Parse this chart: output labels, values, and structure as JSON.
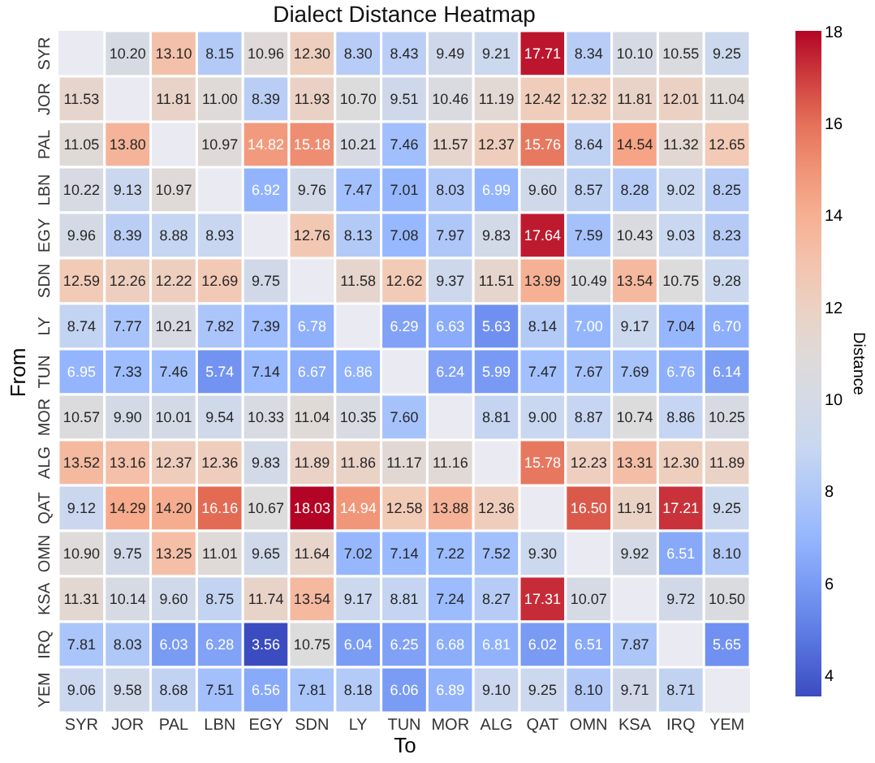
{
  "chart_data": {
    "type": "heatmap",
    "title": "Dialect Distance Heatmap",
    "xlabel": "To",
    "ylabel": "From",
    "clabel": "Distance",
    "categories": [
      "SYR",
      "JOR",
      "PAL",
      "LBN",
      "EGY",
      "SDN",
      "LY",
      "TUN",
      "MOR",
      "ALG",
      "QAT",
      "OMN",
      "KSA",
      "IRQ",
      "YEM"
    ],
    "y_categories": [
      "SYR",
      "JOR",
      "PAL",
      "LBN",
      "EGY",
      "SDN",
      "LY",
      "TUN",
      "MOR",
      "ALG",
      "QAT",
      "OMN",
      "KSA",
      "IRQ",
      "YEM"
    ],
    "cells": [
      [
        null,
        10.2,
        13.1,
        8.15,
        10.96,
        12.3,
        8.3,
        8.43,
        9.49,
        9.21,
        17.71,
        8.34,
        10.1,
        10.55,
        9.25
      ],
      [
        11.53,
        null,
        11.81,
        11.0,
        8.39,
        11.93,
        10.7,
        9.51,
        10.46,
        11.19,
        12.42,
        12.32,
        11.81,
        12.01,
        11.04
      ],
      [
        11.05,
        13.8,
        null,
        10.97,
        14.82,
        15.18,
        10.21,
        7.46,
        11.57,
        12.37,
        15.76,
        8.64,
        14.54,
        11.32,
        12.65
      ],
      [
        10.22,
        9.13,
        10.97,
        null,
        6.92,
        9.76,
        7.47,
        7.01,
        8.03,
        6.99,
        9.6,
        8.57,
        8.28,
        9.02,
        8.25
      ],
      [
        9.96,
        8.39,
        8.88,
        8.93,
        null,
        12.76,
        8.13,
        7.08,
        7.97,
        9.83,
        17.64,
        7.59,
        10.43,
        9.03,
        8.23
      ],
      [
        12.59,
        12.26,
        12.22,
        12.69,
        9.75,
        null,
        11.58,
        12.62,
        9.37,
        11.51,
        13.99,
        10.49,
        13.54,
        10.75,
        9.28
      ],
      [
        8.74,
        7.77,
        10.21,
        7.82,
        7.39,
        6.78,
        null,
        6.29,
        6.63,
        5.63,
        8.14,
        7.0,
        9.17,
        7.04,
        6.7
      ],
      [
        6.95,
        7.33,
        7.46,
        5.74,
        7.14,
        6.67,
        6.86,
        null,
        6.24,
        5.99,
        7.47,
        7.67,
        7.69,
        6.76,
        6.14
      ],
      [
        10.57,
        9.9,
        10.01,
        9.54,
        10.33,
        11.04,
        10.35,
        7.6,
        null,
        8.81,
        9.0,
        8.87,
        10.74,
        8.86,
        10.25
      ],
      [
        13.52,
        13.16,
        12.37,
        12.36,
        9.83,
        11.89,
        11.86,
        11.17,
        11.16,
        null,
        15.78,
        12.23,
        13.31,
        12.3,
        11.89
      ],
      [
        9.12,
        14.29,
        14.2,
        16.16,
        10.67,
        18.03,
        14.94,
        12.58,
        13.88,
        12.36,
        null,
        16.5,
        11.91,
        17.21,
        9.25
      ],
      [
        10.9,
        9.75,
        13.25,
        11.01,
        9.65,
        11.64,
        7.02,
        7.14,
        7.22,
        7.52,
        9.3,
        null,
        9.92,
        6.51,
        8.1
      ],
      [
        11.31,
        10.14,
        9.6,
        8.75,
        11.74,
        13.54,
        9.17,
        8.81,
        7.24,
        8.27,
        17.31,
        10.07,
        null,
        9.72,
        10.5
      ],
      [
        7.81,
        8.03,
        6.03,
        6.28,
        3.56,
        10.75,
        6.04,
        6.25,
        6.68,
        6.81,
        6.02,
        6.51,
        7.87,
        null,
        5.65
      ],
      [
        9.06,
        9.58,
        8.68,
        7.51,
        6.56,
        7.81,
        8.18,
        6.06,
        6.89,
        9.1,
        9.25,
        8.1,
        9.71,
        8.71,
        null
      ]
    ],
    "cell_labels": [
      [
        null,
        "10.20",
        "13.10",
        "8.15",
        "10.96",
        "12.30",
        "8.30",
        "8.43",
        "9.49",
        "9.21",
        "17.71",
        "8.34",
        "10.10",
        "10.55",
        "9.25"
      ],
      [
        "11.53",
        null,
        "11.81",
        "11.00",
        "8.39",
        "11.93",
        "10.70",
        "9.51",
        "10.46",
        "11.19",
        "12.42",
        "12.32",
        "11.81",
        "12.01",
        "11.04"
      ],
      [
        "11.05",
        "13.80",
        null,
        "10.97",
        "14.82",
        "15.18",
        "10.21",
        "7.46",
        "11.57",
        "12.37",
        "15.76",
        "8.64",
        "14.54",
        "11.32",
        "12.65"
      ],
      [
        "10.22",
        "9.13",
        "10.97",
        null,
        "6.92",
        "9.76",
        "7.47",
        "7.01",
        "8.03",
        "6.99",
        "9.60",
        "8.57",
        "8.28",
        "9.02",
        "8.25"
      ],
      [
        "9.96",
        "8.39",
        "8.88",
        "8.93",
        null,
        "12.76",
        "8.13",
        "7.08",
        "7.97",
        "9.83",
        "17.64",
        "7.59",
        "10.43",
        "9.03",
        "8.23"
      ],
      [
        "12.59",
        "12.26",
        "12.22",
        "12.69",
        "9.75",
        null,
        "11.58",
        "12.62",
        "9.37",
        "11.51",
        "13.99",
        "10.49",
        "13.54",
        "10.75",
        "9.28"
      ],
      [
        "8.74",
        "7.77",
        "10.21",
        "7.82",
        "7.39",
        "6.78",
        null,
        "6.29",
        "6.63",
        "5.63",
        "8.14",
        "7.00",
        "9.17",
        "7.04",
        "6.70"
      ],
      [
        "6.95",
        "7.33",
        "7.46",
        "5.74",
        "7.14",
        "6.67",
        "6.86",
        null,
        "6.24",
        "5.99",
        "7.47",
        "7.67",
        "7.69",
        "6.76",
        "6.14"
      ],
      [
        "10.57",
        "9.90",
        "10.01",
        "9.54",
        "10.33",
        "11.04",
        "10.35",
        "7.60",
        null,
        "8.81",
        "9.00",
        "8.87",
        "10.74",
        "8.86",
        "10.25"
      ],
      [
        "13.52",
        "13.16",
        "12.37",
        "12.36",
        "9.83",
        "11.89",
        "11.86",
        "11.17",
        "11.16",
        null,
        "15.78",
        "12.23",
        "13.31",
        "12.30",
        "11.89"
      ],
      [
        "9.12",
        "14.29",
        "14.20",
        "16.16",
        "10.67",
        "18.03",
        "14.94",
        "12.58",
        "13.88",
        "12.36",
        null,
        "16.50",
        "11.91",
        "17.21",
        "9.25"
      ],
      [
        "10.90",
        "9.75",
        "13.25",
        "11.01",
        "9.65",
        "11.64",
        "7.02",
        "7.14",
        "7.22",
        "7.52",
        "9.30",
        null,
        "9.92",
        "6.51",
        "8.10"
      ],
      [
        "11.31",
        "10.14",
        "9.60",
        "8.75",
        "11.74",
        "13.54",
        "9.17",
        "8.81",
        "7.24",
        "8.27",
        "17.31",
        "10.07",
        null,
        "9.72",
        "10.50"
      ],
      [
        "7.81",
        "8.03",
        "6.03",
        "6.28",
        "3.56",
        "10.75",
        "6.04",
        "6.25",
        "6.68",
        "6.81",
        "6.02",
        "6.51",
        "7.87",
        null,
        "5.65"
      ],
      [
        "9.06",
        "9.58",
        "8.68",
        "7.51",
        "6.56",
        "7.81",
        "8.18",
        "6.06",
        "6.89",
        "9.10",
        "9.25",
        "8.10",
        "9.71",
        "8.71",
        null
      ]
    ],
    "clim": [
      3.56,
      18.03
    ],
    "cticks": [
      4,
      6,
      8,
      10,
      12,
      14,
      16,
      18
    ],
    "data_labels": true
  }
}
